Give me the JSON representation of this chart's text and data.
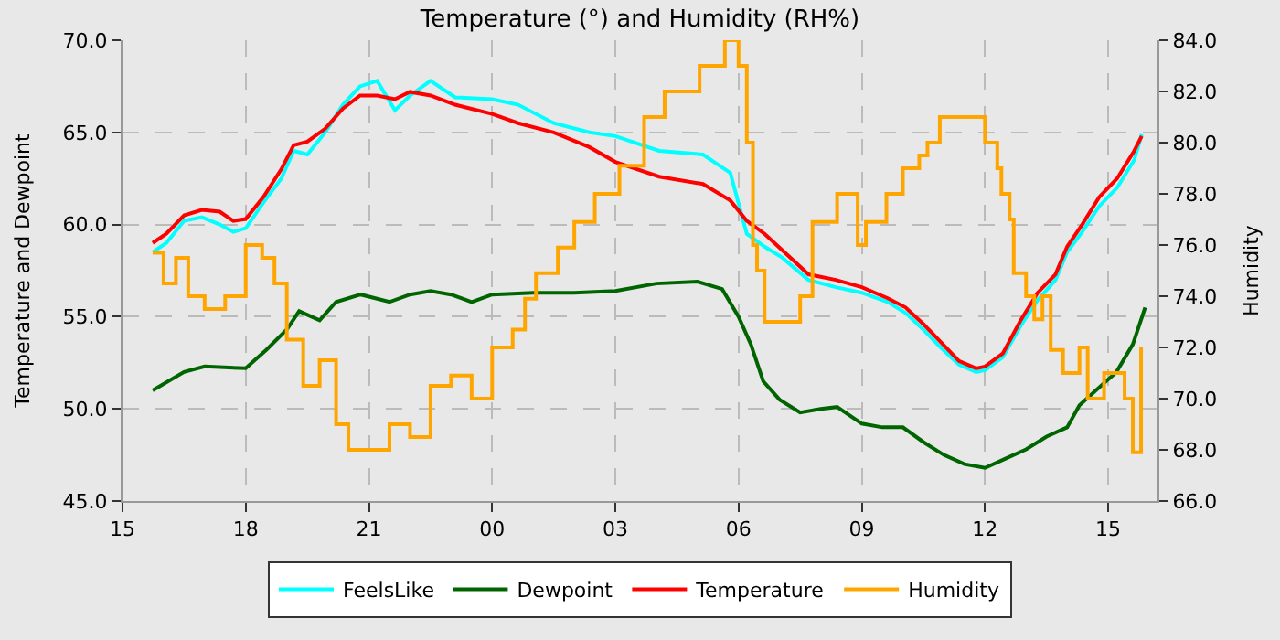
{
  "chart_data": {
    "type": "line",
    "title": "Temperature (°) and Humidity (RH%)",
    "ylabel": "Temperature and Dewpoint",
    "y2label": "Humidity",
    "xlim": [
      "2000-01-01T15:00",
      "2000-01-02T16:12"
    ],
    "xticks": [
      {
        "value": "2000-01-01T15:00",
        "label": "15"
      },
      {
        "value": "2000-01-01T18:00",
        "label": "18"
      },
      {
        "value": "2000-01-01T21:00",
        "label": "21"
      },
      {
        "value": "2000-01-02T00:00",
        "label": "00"
      },
      {
        "value": "2000-01-02T03:00",
        "label": "03"
      },
      {
        "value": "2000-01-02T06:00",
        "label": "06"
      },
      {
        "value": "2000-01-02T09:00",
        "label": "09"
      },
      {
        "value": "2000-01-02T12:00",
        "label": "12"
      },
      {
        "value": "2000-01-02T15:00",
        "label": "15"
      }
    ],
    "ylim": [
      45,
      70
    ],
    "yticks": [
      {
        "value": 45,
        "label": "45.0"
      },
      {
        "value": 50,
        "label": "50.0"
      },
      {
        "value": 55,
        "label": "55.0"
      },
      {
        "value": 60,
        "label": "60.0"
      },
      {
        "value": 65,
        "label": "65.0"
      },
      {
        "value": 70,
        "label": "70.0"
      }
    ],
    "y2lim": [
      66,
      84
    ],
    "y2ticks": [
      {
        "value": 66,
        "label": "66.0"
      },
      {
        "value": 68,
        "label": "68.0"
      },
      {
        "value": 70,
        "label": "70.0"
      },
      {
        "value": 72,
        "label": "72.0"
      },
      {
        "value": 74,
        "label": "74.0"
      },
      {
        "value": 76,
        "label": "76.0"
      },
      {
        "value": 78,
        "label": "78.0"
      },
      {
        "value": 80,
        "label": "80.0"
      },
      {
        "value": 82,
        "label": "82.0"
      },
      {
        "value": 84,
        "label": "84.0"
      }
    ],
    "grid": true,
    "legend": "bottom",
    "marker": "none",
    "line_style": "solid",
    "series": [
      {
        "name": "FeelsLike",
        "color": "#00ffff",
        "x": [
          "2000-01-01T15:44",
          "2000-01-01T16:04",
          "2000-01-01T16:30",
          "2000-01-01T16:56",
          "2000-01-01T17:22",
          "2000-01-01T17:42",
          "2000-01-01T18:00",
          "2000-01-01T18:26",
          "2000-01-01T18:52",
          "2000-01-01T19:10",
          "2000-01-01T19:30",
          "2000-01-01T19:56",
          "2000-01-01T20:22",
          "2000-01-01T20:47",
          "2000-01-01T21:12",
          "2000-01-01T21:38",
          "2000-01-01T22:00",
          "2000-01-01T22:30",
          "2000-01-01T23:06",
          "2000-01-02T00:00",
          "2000-01-02T00:38",
          "2000-01-02T01:30",
          "2000-01-02T02:22",
          "2000-01-02T03:00",
          "2000-01-02T04:04",
          "2000-01-02T05:08",
          "2000-01-02T05:48",
          "2000-01-02T06:12",
          "2000-01-02T06:38",
          "2000-01-02T07:04",
          "2000-01-02T07:42",
          "2000-01-02T08:22",
          "2000-01-02T09:00",
          "2000-01-02T09:38",
          "2000-01-02T10:04",
          "2000-01-02T10:30",
          "2000-01-02T10:56",
          "2000-01-02T11:22",
          "2000-01-02T11:47",
          "2000-01-02T12:00",
          "2000-01-02T12:26",
          "2000-01-02T12:52",
          "2000-01-02T13:17",
          "2000-01-02T13:43",
          "2000-01-02T14:00",
          "2000-01-02T14:22",
          "2000-01-02T14:47",
          "2000-01-02T15:13",
          "2000-01-02T15:38",
          "2000-01-02T15:49"
        ],
        "values": [
          58.5,
          59.0,
          60.2,
          60.4,
          60.0,
          59.6,
          59.8,
          61.2,
          62.5,
          64.0,
          63.8,
          65.0,
          66.5,
          67.5,
          67.8,
          66.2,
          67.0,
          67.8,
          66.9,
          66.8,
          66.5,
          65.5,
          65.0,
          64.8,
          64.0,
          63.8,
          62.8,
          59.5,
          58.8,
          58.2,
          57.0,
          56.6,
          56.3,
          55.8,
          55.2,
          54.3,
          53.3,
          52.4,
          52.0,
          52.1,
          52.8,
          54.5,
          55.9,
          57.0,
          58.5,
          59.6,
          61.0,
          62.0,
          63.5,
          64.9
        ]
      },
      {
        "name": "Dewpoint",
        "color": "#006400",
        "x": [
          "2000-01-01T15:44",
          "2000-01-01T16:30",
          "2000-01-01T17:00",
          "2000-01-01T18:00",
          "2000-01-01T18:30",
          "2000-01-01T19:00",
          "2000-01-01T19:18",
          "2000-01-01T19:48",
          "2000-01-01T20:12",
          "2000-01-01T20:48",
          "2000-01-01T21:30",
          "2000-01-01T22:00",
          "2000-01-01T22:30",
          "2000-01-01T23:00",
          "2000-01-01T23:30",
          "2000-01-02T00:00",
          "2000-01-02T01:00",
          "2000-01-02T02:00",
          "2000-01-02T03:00",
          "2000-01-02T04:00",
          "2000-01-02T05:00",
          "2000-01-02T05:36",
          "2000-01-02T06:00",
          "2000-01-02T06:18",
          "2000-01-02T06:36",
          "2000-01-02T07:00",
          "2000-01-02T07:30",
          "2000-01-02T08:00",
          "2000-01-02T08:24",
          "2000-01-02T09:00",
          "2000-01-02T09:30",
          "2000-01-02T10:00",
          "2000-01-02T10:30",
          "2000-01-02T11:00",
          "2000-01-02T11:30",
          "2000-01-02T12:00",
          "2000-01-02T12:30",
          "2000-01-02T13:00",
          "2000-01-02T13:30",
          "2000-01-02T14:00",
          "2000-01-02T14:18",
          "2000-01-02T14:42",
          "2000-01-02T15:12",
          "2000-01-02T15:36",
          "2000-01-02T15:54"
        ],
        "values": [
          51.0,
          52.0,
          52.3,
          52.2,
          53.2,
          54.3,
          55.3,
          54.8,
          55.8,
          56.2,
          55.8,
          56.2,
          56.4,
          56.2,
          55.8,
          56.2,
          56.3,
          56.3,
          56.4,
          56.8,
          56.9,
          56.5,
          55.0,
          53.5,
          51.5,
          50.5,
          49.8,
          50.0,
          50.1,
          49.2,
          49.0,
          49.0,
          48.2,
          47.5,
          47.0,
          46.8,
          47.3,
          47.8,
          48.5,
          49.0,
          50.2,
          51.0,
          52.0,
          53.5,
          55.5
        ]
      },
      {
        "name": "Temperature",
        "color": "#ff0000",
        "x": [
          "2000-01-01T15:44",
          "2000-01-01T16:04",
          "2000-01-01T16:30",
          "2000-01-01T16:56",
          "2000-01-01T17:22",
          "2000-01-01T17:42",
          "2000-01-01T18:00",
          "2000-01-01T18:26",
          "2000-01-01T18:52",
          "2000-01-01T19:10",
          "2000-01-01T19:30",
          "2000-01-01T19:56",
          "2000-01-01T20:22",
          "2000-01-01T20:47",
          "2000-01-01T21:12",
          "2000-01-01T21:38",
          "2000-01-01T22:00",
          "2000-01-01T22:30",
          "2000-01-01T23:06",
          "2000-01-02T00:00",
          "2000-01-02T00:38",
          "2000-01-02T01:30",
          "2000-01-02T02:22",
          "2000-01-02T03:00",
          "2000-01-02T04:04",
          "2000-01-02T05:08",
          "2000-01-02T05:48",
          "2000-01-02T06:12",
          "2000-01-02T06:38",
          "2000-01-02T07:04",
          "2000-01-02T07:42",
          "2000-01-02T08:22",
          "2000-01-02T09:00",
          "2000-01-02T09:38",
          "2000-01-02T10:04",
          "2000-01-02T10:30",
          "2000-01-02T10:56",
          "2000-01-02T11:22",
          "2000-01-02T11:47",
          "2000-01-02T12:00",
          "2000-01-02T12:26",
          "2000-01-02T12:52",
          "2000-01-02T13:17",
          "2000-01-02T13:43",
          "2000-01-02T14:00",
          "2000-01-02T14:22",
          "2000-01-02T14:47",
          "2000-01-02T15:13",
          "2000-01-02T15:38",
          "2000-01-02T15:49"
        ],
        "values": [
          59.0,
          59.5,
          60.5,
          60.8,
          60.7,
          60.2,
          60.3,
          61.5,
          63.0,
          64.3,
          64.5,
          65.2,
          66.3,
          67.0,
          67.0,
          66.8,
          67.2,
          67.0,
          66.5,
          66.0,
          65.5,
          65.0,
          64.2,
          63.4,
          62.6,
          62.2,
          61.3,
          60.2,
          59.5,
          58.6,
          57.3,
          57.0,
          56.6,
          56.0,
          55.5,
          54.6,
          53.6,
          52.6,
          52.2,
          52.3,
          53.0,
          54.8,
          56.3,
          57.3,
          58.8,
          60.0,
          61.5,
          62.5,
          64.0,
          64.8
        ]
      },
      {
        "name": "Humidity",
        "color": "#ffa500",
        "type": "step",
        "axis": "y2",
        "x": [
          "2000-01-01T15:44",
          "2000-01-01T16:00",
          "2000-01-01T16:18",
          "2000-01-01T16:36",
          "2000-01-01T17:00",
          "2000-01-01T17:30",
          "2000-01-01T18:00",
          "2000-01-01T18:24",
          "2000-01-01T18:42",
          "2000-01-01T19:00",
          "2000-01-01T19:24",
          "2000-01-01T19:48",
          "2000-01-01T20:12",
          "2000-01-01T20:30",
          "2000-01-01T21:00",
          "2000-01-01T21:30",
          "2000-01-01T22:00",
          "2000-01-01T22:30",
          "2000-01-01T23:00",
          "2000-01-01T23:30",
          "2000-01-02T00:00",
          "2000-01-02T00:30",
          "2000-01-02T00:48",
          "2000-01-02T01:04",
          "2000-01-02T01:36",
          "2000-01-02T02:00",
          "2000-01-02T02:30",
          "2000-01-02T03:06",
          "2000-01-02T03:42",
          "2000-01-02T04:12",
          "2000-01-02T05:03",
          "2000-01-02T05:40",
          "2000-01-02T06:00",
          "2000-01-02T06:12",
          "2000-01-02T06:21",
          "2000-01-02T06:27",
          "2000-01-02T06:38",
          "2000-01-02T07:18",
          "2000-01-02T07:30",
          "2000-01-02T07:48",
          "2000-01-02T08:24",
          "2000-01-02T08:54",
          "2000-01-02T09:06",
          "2000-01-02T09:36",
          "2000-01-02T10:00",
          "2000-01-02T10:24",
          "2000-01-02T10:36",
          "2000-01-02T10:54",
          "2000-01-02T12:00",
          "2000-01-02T12:18",
          "2000-01-02T12:24",
          "2000-01-02T12:36",
          "2000-01-02T12:42",
          "2000-01-02T13:00",
          "2000-01-02T13:12",
          "2000-01-02T13:24",
          "2000-01-02T13:36",
          "2000-01-02T13:54",
          "2000-01-02T14:18",
          "2000-01-02T14:30",
          "2000-01-02T14:54",
          "2000-01-02T15:06",
          "2000-01-02T15:24",
          "2000-01-02T15:36",
          "2000-01-02T15:48"
        ],
        "values": [
          75.7,
          74.5,
          75.5,
          74.0,
          73.5,
          74.0,
          76.0,
          75.5,
          74.5,
          72.3,
          70.5,
          71.5,
          69.0,
          68.0,
          68.0,
          69.0,
          68.5,
          70.5,
          70.9,
          70.0,
          72.0,
          72.7,
          73.9,
          74.9,
          75.9,
          76.9,
          78.0,
          79.1,
          81.0,
          82.0,
          83.0,
          84.0,
          83.0,
          80.0,
          76.0,
          75.0,
          73.0,
          73.0,
          74.0,
          76.9,
          78.0,
          76.0,
          76.9,
          78.0,
          79.0,
          79.5,
          80.0,
          81.0,
          80.0,
          79.0,
          78.0,
          77.0,
          74.9,
          74.0,
          73.1,
          74.0,
          71.9,
          71.0,
          72.0,
          70.0,
          71.0,
          71.0,
          70.0,
          67.9,
          72.0
        ]
      }
    ]
  }
}
